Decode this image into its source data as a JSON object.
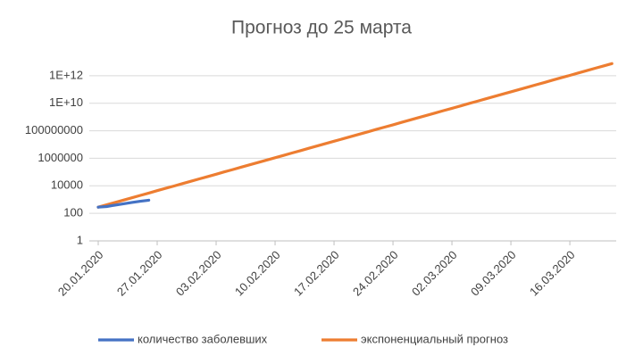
{
  "chart_data": {
    "type": "line",
    "title": "Прогноз до 25 марта",
    "categories": [
      "20.01.2020",
      null,
      null,
      null,
      null,
      null,
      null,
      "27.01.2020",
      null,
      null,
      null,
      null,
      null,
      null,
      "03.02.2020",
      null,
      null,
      null,
      null,
      null,
      null,
      "10.02.2020",
      null,
      null,
      null,
      null,
      null,
      null,
      "17.02.2020",
      null,
      null,
      null,
      null,
      null,
      null,
      "24.02.2020",
      null,
      null,
      null,
      null,
      null,
      null,
      "02.03.2020",
      null,
      null,
      null,
      null,
      null,
      null,
      "09.03.2020",
      null,
      null,
      null,
      null,
      null,
      null,
      "16.03.2020",
      null,
      null,
      null,
      null,
      null
    ],
    "series": [
      {
        "name": "количество заболевших",
        "color": "#4472c4",
        "values": [
          282,
          314,
          400,
          500,
          620,
          750,
          900,
          null,
          null,
          null,
          null,
          null,
          null,
          null,
          null,
          null,
          null,
          null,
          null,
          null,
          null,
          null,
          null,
          null,
          null,
          null,
          null,
          null,
          null,
          null,
          null,
          null,
          null,
          null,
          null,
          null,
          null,
          null,
          null,
          null,
          null,
          null,
          null,
          null,
          null,
          null,
          null,
          null,
          null,
          null,
          null,
          null,
          null,
          null,
          null,
          null,
          null,
          null,
          null,
          null,
          null,
          null
        ]
      },
      {
        "name": "экспоненциальный прогноз",
        "color": "#ed7d31",
        "values": [
          282,
          418,
          619,
          918,
          1360,
          2020,
          2990,
          4440,
          6580,
          9750,
          14500,
          21400,
          31800,
          47100,
          69800,
          104000,
          153000,
          228000,
          337000,
          500000,
          741000,
          1100000,
          1630000,
          2420000,
          3580000,
          5310000,
          7870000,
          11700000,
          17300000,
          25600000,
          38000000,
          56400000,
          83600000,
          124000000,
          184000000,
          272000000,
          404000000,
          598000000,
          887000000,
          1320000000,
          1950000000,
          2890000000,
          4290000000,
          6350000000,
          9420000000,
          14000000000,
          20700000000,
          30700000000,
          45500000000,
          67500000000,
          100000000000,
          148000000000,
          220000000000,
          326000000000,
          483000000000,
          716000000000,
          1060000000000,
          1570000000000,
          2330000000000,
          3460000000000,
          5130000000000,
          7600000000000
        ]
      }
    ],
    "ylog": true,
    "ylim": [
      1,
      100000000000000
    ],
    "yticks": [
      1,
      100,
      10000,
      1000000,
      100000000,
      {
        "value": 10000000000,
        "label": "1E+10"
      },
      {
        "value": 1000000000000,
        "label": "1E+12"
      }
    ],
    "grid": true,
    "legend": "bottom"
  }
}
